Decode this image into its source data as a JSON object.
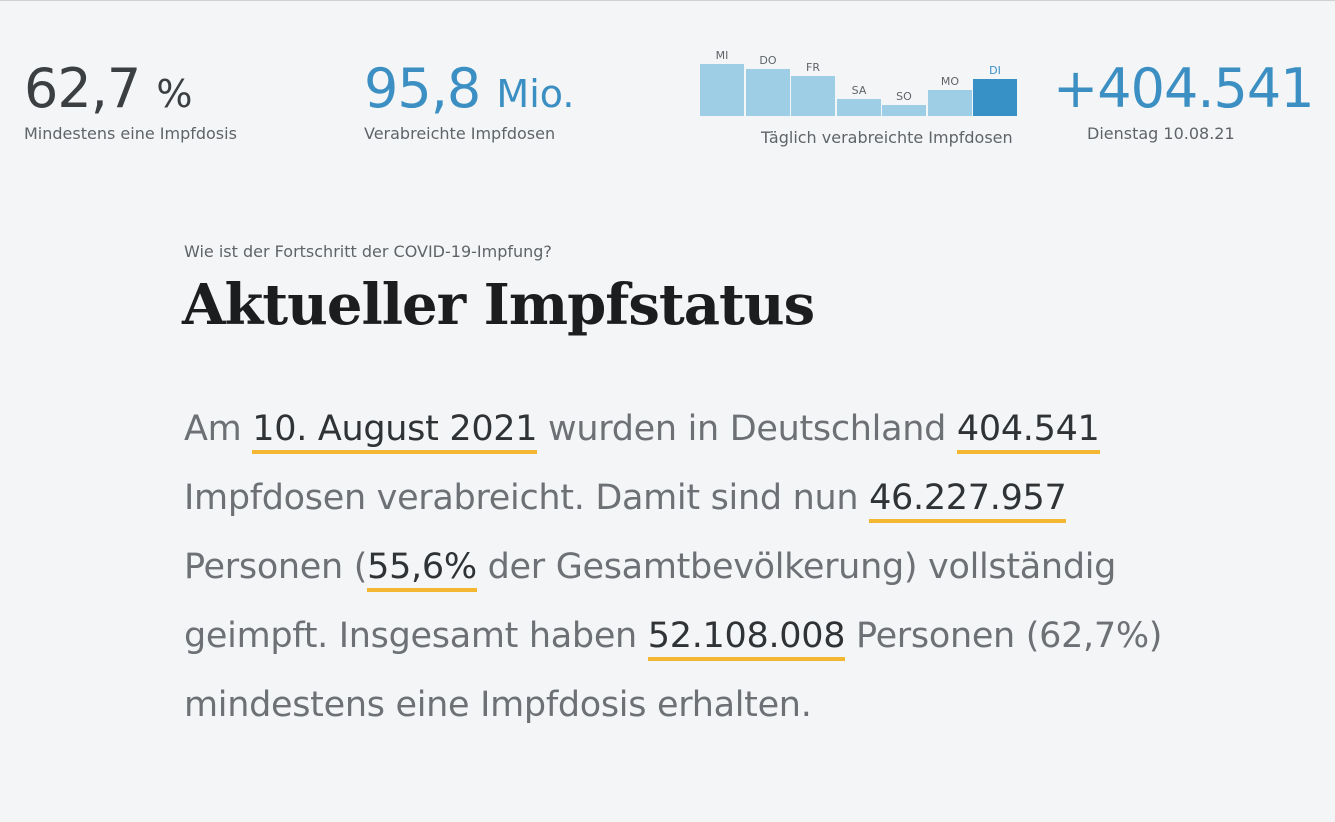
{
  "stats": {
    "first_dose": {
      "value": "62,7",
      "unit": "%",
      "caption": "Mindestens eine Impfdosis"
    },
    "total_doses": {
      "value": "95,8",
      "unit": "Mio.",
      "caption": "Verabreichte Impfdosen"
    },
    "today": {
      "value": "+404.541",
      "caption": "Dienstag 10.08.21"
    }
  },
  "mini_chart": {
    "caption": "Täglich verabreichte Impfdosen",
    "days": [
      "MI",
      "DO",
      "FR",
      "SA",
      "SO",
      "MO",
      "DI"
    ],
    "values": [
      0.68,
      0.62,
      0.52,
      0.22,
      0.14,
      0.34,
      0.49
    ],
    "active_index": 6,
    "bar_color": "#9ecde6",
    "active_color": "#3791c6"
  },
  "article": {
    "kicker": "Wie ist der Fortschritt der COVID-19-Impfung?",
    "headline": "Aktueller Impfstatus",
    "t1": "Am ",
    "date": "10. August 2021",
    "t2": " wurden in Deutschland ",
    "doses": "404.541",
    "t3": " Impfdosen verabreicht. Damit sind nun ",
    "fully": "46.227.957",
    "t4": " Personen (",
    "fully_pct": "55,6%",
    "t5": " der Gesamtbevölkerung) vollständig geimpft. Insgesamt haben ",
    "first": "52.108.008",
    "t6": " Personen (62,7%) mindestens eine Impfdosis erhalten."
  },
  "colors": {
    "accent": "#3c8fc2",
    "underline": "#f3b732"
  }
}
